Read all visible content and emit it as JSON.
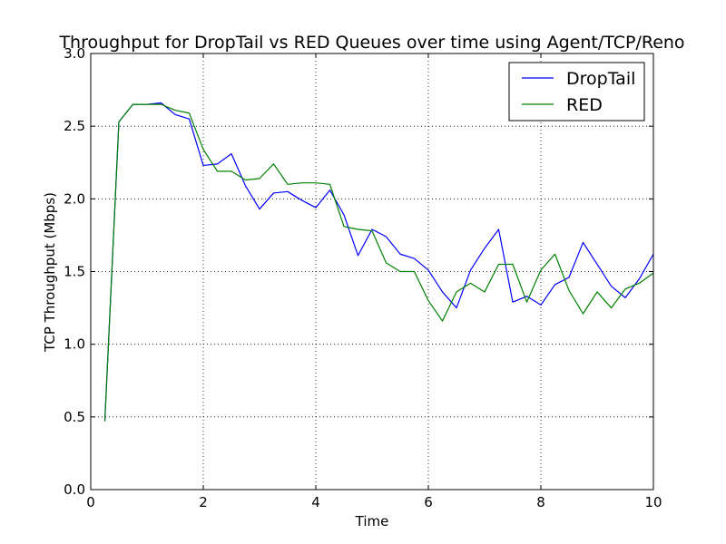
{
  "chart_data": {
    "type": "line",
    "title": "Throughput for DropTail vs RED Queues over time using Agent/TCP/Reno",
    "xlabel": "Time",
    "ylabel": "TCP Throughput (Mbps)",
    "xlim": [
      0,
      10
    ],
    "ylim": [
      0.0,
      3.0
    ],
    "xticks": [
      0,
      2,
      4,
      6,
      8,
      10
    ],
    "xtick_labels": [
      "0",
      "2",
      "4",
      "6",
      "8",
      "10"
    ],
    "yticks": [
      0.0,
      0.5,
      1.0,
      1.5,
      2.0,
      2.5,
      3.0
    ],
    "ytick_labels": [
      "0.0",
      "0.5",
      "1.0",
      "1.5",
      "2.0",
      "2.5",
      "3.0"
    ],
    "grid": true,
    "legend_position": "top-right",
    "x": [
      0.25,
      0.5,
      0.75,
      1.0,
      1.25,
      1.5,
      1.75,
      2.0,
      2.25,
      2.5,
      2.75,
      3.0,
      3.25,
      3.5,
      3.75,
      4.0,
      4.25,
      4.5,
      4.75,
      5.0,
      5.25,
      5.5,
      5.75,
      6.0,
      6.25,
      6.5,
      6.75,
      7.0,
      7.25,
      7.5,
      7.75,
      8.0,
      8.25,
      8.5,
      8.75,
      9.0,
      9.25,
      9.5,
      9.75,
      10.0
    ],
    "series": [
      {
        "name": "DropTail",
        "color": "#0000ff",
        "values": [
          0.47,
          2.53,
          2.65,
          2.65,
          2.66,
          2.58,
          2.55,
          2.23,
          2.24,
          2.31,
          2.09,
          1.93,
          2.04,
          2.05,
          1.99,
          1.94,
          2.06,
          1.89,
          1.61,
          1.79,
          1.74,
          1.62,
          1.59,
          1.51,
          1.36,
          1.25,
          1.51,
          1.66,
          1.79,
          1.29,
          1.33,
          1.27,
          1.41,
          1.46,
          1.7,
          1.55,
          1.4,
          1.32,
          1.45,
          1.62
        ]
      },
      {
        "name": "RED",
        "color": "#008000",
        "values": [
          0.47,
          2.53,
          2.65,
          2.65,
          2.65,
          2.61,
          2.59,
          2.34,
          2.19,
          2.19,
          2.13,
          2.14,
          2.24,
          2.1,
          2.11,
          2.11,
          2.1,
          1.81,
          1.79,
          1.78,
          1.56,
          1.5,
          1.5,
          1.3,
          1.16,
          1.36,
          1.42,
          1.36,
          1.55,
          1.55,
          1.29,
          1.51,
          1.62,
          1.37,
          1.21,
          1.36,
          1.25,
          1.38,
          1.42,
          1.49
        ]
      }
    ]
  }
}
